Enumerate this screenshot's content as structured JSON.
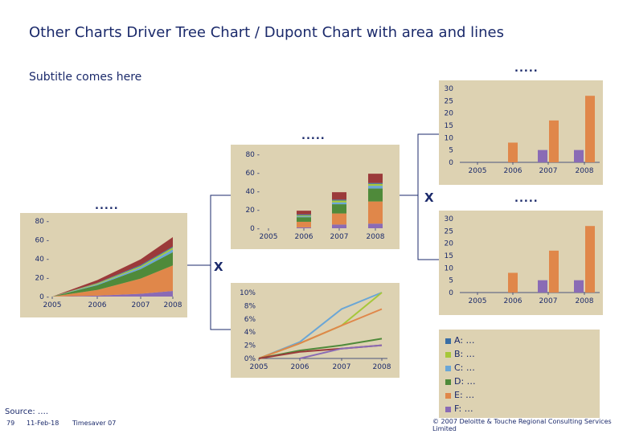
{
  "page": {
    "title": "Other Charts Driver Tree Chart / Dupont Chart with area and lines",
    "subtitle": "Subtitle comes here",
    "source": "Source: ….",
    "footer_page": "79",
    "footer_date": "11-Feb-18",
    "footer_product": "Timesaver 07",
    "footer_copyright": "© 2007 Deloitte & Touche Regional Consulting Services Limited",
    "placeholder_dots": ".....",
    "operator_x": "X"
  },
  "colors": {
    "panel_bg": "#ddd2b2",
    "A": "#3a6ea5",
    "B": "#a6c73a",
    "C": "#6aa6d6",
    "D": "#4f8a3a",
    "E": "#e0874a",
    "F": "#8a6bb5",
    "G": "#9b3a3a",
    "text": "#1b2a6b"
  },
  "legend": [
    {
      "key": "A",
      "label": "A: …"
    },
    {
      "key": "B",
      "label": "B: …"
    },
    {
      "key": "C",
      "label": "C: …"
    },
    {
      "key": "D",
      "label": "D: …"
    },
    {
      "key": "E",
      "label": "E: …"
    },
    {
      "key": "F",
      "label": "F: …"
    }
  ],
  "chart_data": [
    {
      "id": "area",
      "type": "area",
      "categories": [
        "2005",
        "2006",
        "2007",
        "2008"
      ],
      "ylim": [
        0,
        80
      ],
      "yticks": [
        "0",
        "20",
        "40",
        "60",
        "80"
      ],
      "series": [
        {
          "key": "F",
          "values": [
            0,
            1,
            3,
            6
          ]
        },
        {
          "key": "E",
          "values": [
            0,
            6,
            16,
            27
          ]
        },
        {
          "key": "D",
          "values": [
            0,
            5,
            10,
            14
          ]
        },
        {
          "key": "C",
          "values": [
            0,
            1,
            2,
            3
          ]
        },
        {
          "key": "B",
          "values": [
            0,
            1,
            1.5,
            2
          ]
        },
        {
          "key": "A",
          "values": [
            0,
            0.5,
            1,
            1
          ]
        },
        {
          "key": "G",
          "values": [
            0,
            3,
            6,
            10
          ]
        }
      ]
    },
    {
      "id": "stacked",
      "type": "bar",
      "categories": [
        "2005",
        "2006",
        "2007",
        "2008"
      ],
      "ylim": [
        0,
        80
      ],
      "yticks": [
        "0",
        "20",
        "40",
        "60",
        "80"
      ],
      "series": [
        {
          "key": "F",
          "values": [
            0,
            1,
            4,
            5
          ]
        },
        {
          "key": "E",
          "values": [
            0,
            6,
            12,
            24
          ]
        },
        {
          "key": "D",
          "values": [
            0,
            5,
            10,
            14
          ]
        },
        {
          "key": "C",
          "values": [
            0,
            1,
            2,
            3
          ]
        },
        {
          "key": "B",
          "values": [
            0,
            1,
            2,
            2
          ]
        },
        {
          "key": "A",
          "values": [
            0,
            1,
            1,
            1
          ]
        },
        {
          "key": "G",
          "values": [
            0,
            4,
            8,
            10
          ]
        }
      ]
    },
    {
      "id": "line",
      "type": "line",
      "categories": [
        "2005",
        "2006",
        "2007",
        "2008"
      ],
      "ylim": [
        0,
        10
      ],
      "yticks": [
        "0%",
        "2%",
        "4%",
        "6%",
        "8%",
        "10%"
      ],
      "series": [
        {
          "key": "C",
          "values": [
            0,
            2.5,
            7.5,
            10
          ]
        },
        {
          "key": "B",
          "values": [
            0,
            2.3,
            5,
            10
          ]
        },
        {
          "key": "E",
          "values": [
            0,
            2.3,
            5,
            7.5
          ]
        },
        {
          "key": "D",
          "values": [
            0,
            1.2,
            2,
            3
          ]
        },
        {
          "key": "G",
          "values": [
            0,
            1,
            1.5,
            2
          ]
        },
        {
          "key": "F",
          "values": [
            null,
            0,
            1.5,
            2
          ]
        }
      ]
    },
    {
      "id": "bars-top",
      "type": "bar",
      "categories": [
        "2005",
        "2006",
        "2007",
        "2008"
      ],
      "ylim": [
        0,
        30
      ],
      "yticks": [
        "0",
        "5",
        "10",
        "15",
        "20",
        "25",
        "30"
      ],
      "series": [
        {
          "key": "E",
          "values": [
            0,
            8,
            0,
            0
          ],
          "offset": 0
        },
        {
          "key": "F",
          "values": [
            0,
            0,
            5,
            5
          ],
          "offset": -1
        },
        {
          "key": "E",
          "values": [
            0,
            0,
            17,
            27
          ],
          "offset": 1
        }
      ]
    },
    {
      "id": "bars-bottom",
      "type": "bar",
      "categories": [
        "2005",
        "2006",
        "2007",
        "2008"
      ],
      "ylim": [
        0,
        30
      ],
      "yticks": [
        "0",
        "5",
        "10",
        "15",
        "20",
        "25",
        "30"
      ],
      "series": [
        {
          "key": "E",
          "values": [
            0,
            8,
            0,
            0
          ],
          "offset": 0
        },
        {
          "key": "F",
          "values": [
            0,
            0,
            5,
            5
          ],
          "offset": -1
        },
        {
          "key": "E",
          "values": [
            0,
            0,
            17,
            27
          ],
          "offset": 1
        }
      ]
    }
  ]
}
